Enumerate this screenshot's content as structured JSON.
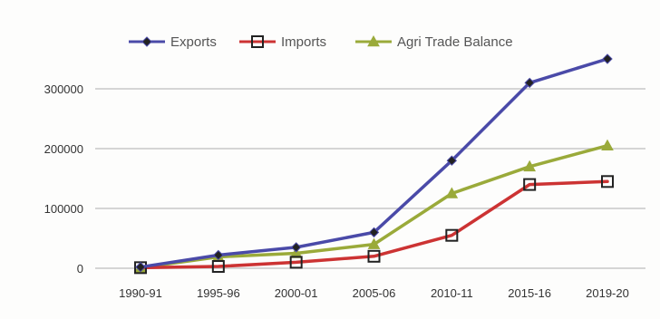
{
  "chart_data": {
    "type": "line",
    "categories": [
      "1990-91",
      "1995-96",
      "2000-01",
      "2005-06",
      "2010-11",
      "2015-16",
      "2019-20"
    ],
    "series": [
      {
        "name": "Exports",
        "values": [
          2000,
          22000,
          35000,
          60000,
          180000,
          310000,
          350000
        ],
        "color": "#4a4aa8",
        "marker": "diamond"
      },
      {
        "name": "Imports",
        "values": [
          1000,
          3000,
          10000,
          20000,
          55000,
          140000,
          145000
        ],
        "color": "#cc3333",
        "marker": "square"
      },
      {
        "name": "Agri Trade Balance",
        "values": [
          1000,
          19000,
          25000,
          40000,
          125000,
          170000,
          205000
        ],
        "color": "#9aaa3a",
        "marker": "triangle"
      }
    ],
    "y_ticks": [
      "0",
      "100000",
      "200000",
      "300000"
    ],
    "ylim": [
      0,
      300000
    ],
    "legend_position": "top",
    "grid": true
  }
}
